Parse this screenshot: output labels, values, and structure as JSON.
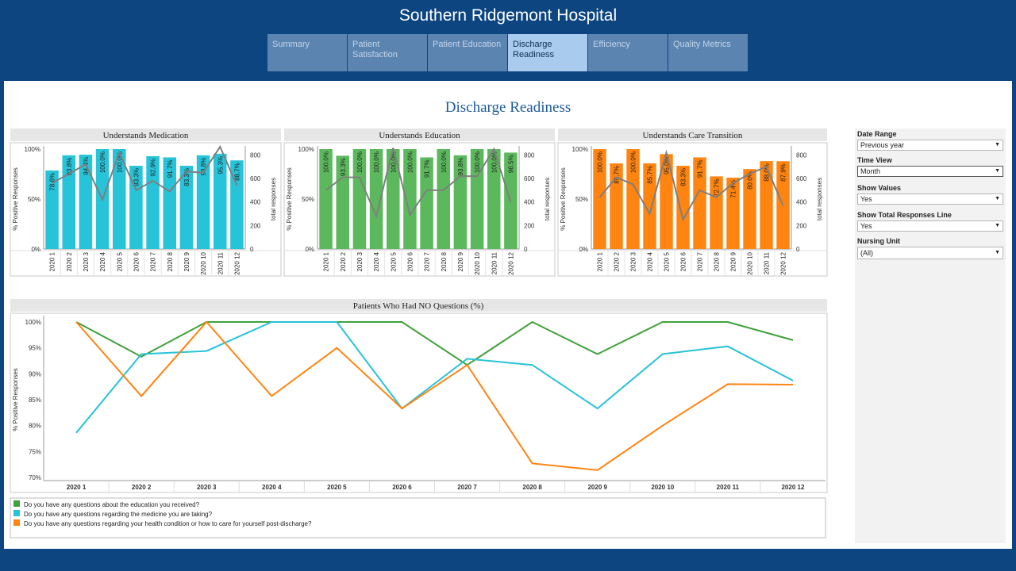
{
  "header": {
    "title": "Southern Ridgemont Hospital"
  },
  "tabs": [
    {
      "label": "Summary",
      "active": false
    },
    {
      "label": "Patient Satisfaction",
      "active": false
    },
    {
      "label": "Patient Education",
      "active": false
    },
    {
      "label": "Discharge Readiness",
      "active": true
    },
    {
      "label": "Efficiency",
      "active": false
    },
    {
      "label": "Quality Metrics",
      "active": false
    }
  ],
  "page": {
    "title": "Discharge Readiness"
  },
  "filters": [
    {
      "label": "Date Range",
      "value": "Previous year"
    },
    {
      "label": "Time View",
      "value": "Month"
    },
    {
      "label": "Show Values",
      "value": "Yes"
    },
    {
      "label": "Show Total Responses Line",
      "value": "Yes"
    },
    {
      "label": "Nursing Unit",
      "value": "(All)"
    }
  ],
  "colors": {
    "medication": "#27c3d8",
    "education": "#5cb85c",
    "care": "#ff8410",
    "line": "#7f7f7f",
    "brand": "#0d4580"
  },
  "chart_data": [
    {
      "type": "bar",
      "title": "Understands Medication",
      "ylabel": "% Positive Responses",
      "y2label": "total responses",
      "ylim": [
        0,
        100
      ],
      "y2lim": [
        0,
        850
      ],
      "yticks": [
        "0%",
        "50%",
        "100%"
      ],
      "y2ticks": [
        "0",
        "200",
        "400",
        "600",
        "800"
      ],
      "categories": [
        "2020 1",
        "2020 2",
        "2020 3",
        "2020 4",
        "2020 5",
        "2020 6",
        "2020 7",
        "2020 8",
        "2020 9",
        "2020 10",
        "2020 11",
        "2020 12"
      ],
      "values": [
        78.6,
        93.8,
        94.4,
        100.0,
        100.0,
        83.3,
        92.9,
        91.7,
        83.3,
        93.8,
        95.3,
        88.7
      ],
      "labels": [
        "78.6%",
        "93.8%",
        "94.4%",
        "100.0%",
        "100.0%",
        "83.3%",
        "92.9%",
        "91.7%",
        "83.3%",
        "93.8%",
        "95.3%",
        "88.7%"
      ],
      "total_responses": [
        560,
        640,
        720,
        420,
        820,
        500,
        580,
        490,
        660,
        650,
        870,
        540
      ]
    },
    {
      "type": "bar",
      "title": "Understands Education",
      "ylabel": "% Positive Responses",
      "y2label": "total responses",
      "ylim": [
        0,
        100
      ],
      "y2lim": [
        0,
        850
      ],
      "yticks": [
        "0%",
        "50%",
        "100%"
      ],
      "y2ticks": [
        "0",
        "200",
        "400",
        "600",
        "800"
      ],
      "categories": [
        "2020 1",
        "2020 2",
        "2020 3",
        "2020 4",
        "2020 5",
        "2020 6",
        "2020 7",
        "2020 8",
        "2020 9",
        "2020 10",
        "2020 11",
        "2020 12"
      ],
      "values": [
        100.0,
        93.3,
        100.0,
        100.0,
        100.0,
        100.0,
        91.7,
        100.0,
        93.8,
        100.0,
        100.0,
        96.5
      ],
      "labels": [
        "100.0%",
        "93.3%",
        "100.0%",
        "100.0%",
        "100.0%",
        "100.0%",
        "91.7%",
        "100.0%",
        "93.8%",
        "100.0%",
        "100.0%",
        "96.5%"
      ],
      "total_responses": [
        500,
        610,
        610,
        280,
        860,
        290,
        500,
        500,
        620,
        620,
        850,
        400
      ]
    },
    {
      "type": "bar",
      "title": "Understands Care Transition",
      "ylabel": "% Positive Responses",
      "y2label": "total responses",
      "ylim": [
        0,
        100
      ],
      "y2lim": [
        0,
        850
      ],
      "yticks": [
        "0%",
        "50%",
        "100%"
      ],
      "y2ticks": [
        "0",
        "200",
        "400",
        "600",
        "800"
      ],
      "categories": [
        "2020 1",
        "2020 2",
        "2020 3",
        "2020 4",
        "2020 5",
        "2020 6",
        "2020 7",
        "2020 8",
        "2020 9",
        "2020 10",
        "2020 11",
        "2020 12"
      ],
      "values": [
        100.0,
        85.7,
        100.0,
        85.7,
        95.0,
        83.3,
        91.7,
        72.7,
        71.4,
        80.0,
        88.0,
        87.9
      ],
      "labels": [
        "100.0%",
        "85.7%",
        "100.0%",
        "85.7%",
        "95.0%",
        "83.3%",
        "91.7%",
        "72.7%",
        "71.4%",
        "80.0%",
        "88.0%",
        "87.9%"
      ],
      "total_responses": [
        440,
        610,
        550,
        300,
        820,
        250,
        500,
        440,
        560,
        640,
        700,
        370
      ]
    },
    {
      "type": "line",
      "title": "Patients Who Had NO Questions (%)",
      "ylabel": "% Positive Responses",
      "ylim": [
        70,
        100
      ],
      "yticks": [
        "70%",
        "75%",
        "80%",
        "85%",
        "90%",
        "95%",
        "100%"
      ],
      "x": [
        "2020 1",
        "2020 2",
        "2020 3",
        "2020 4",
        "2020 5",
        "2020 6",
        "2020 7",
        "2020 8",
        "2020 9",
        "2020 10",
        "2020 11",
        "2020 12"
      ],
      "series": [
        {
          "name": "Do you have any questions about the education you received?",
          "color": "#3ea13a",
          "values": [
            100.0,
            93.3,
            100.0,
            100.0,
            100.0,
            100.0,
            91.7,
            100.0,
            93.8,
            100.0,
            100.0,
            96.5
          ]
        },
        {
          "name": "Do you have any questions regarding the medicine you are taking?",
          "color": "#27c3d8",
          "values": [
            78.6,
            93.8,
            94.4,
            100.0,
            100.0,
            83.3,
            92.9,
            91.7,
            83.3,
            93.8,
            95.3,
            88.7
          ]
        },
        {
          "name": "Do you have any questions regarding your health condition or how to care for yourself post-discharge?",
          "color": "#ff8410",
          "values": [
            100.0,
            85.7,
            100.0,
            85.7,
            95.0,
            83.3,
            91.7,
            72.7,
            71.4,
            80.0,
            88.0,
            87.9
          ]
        }
      ]
    }
  ]
}
